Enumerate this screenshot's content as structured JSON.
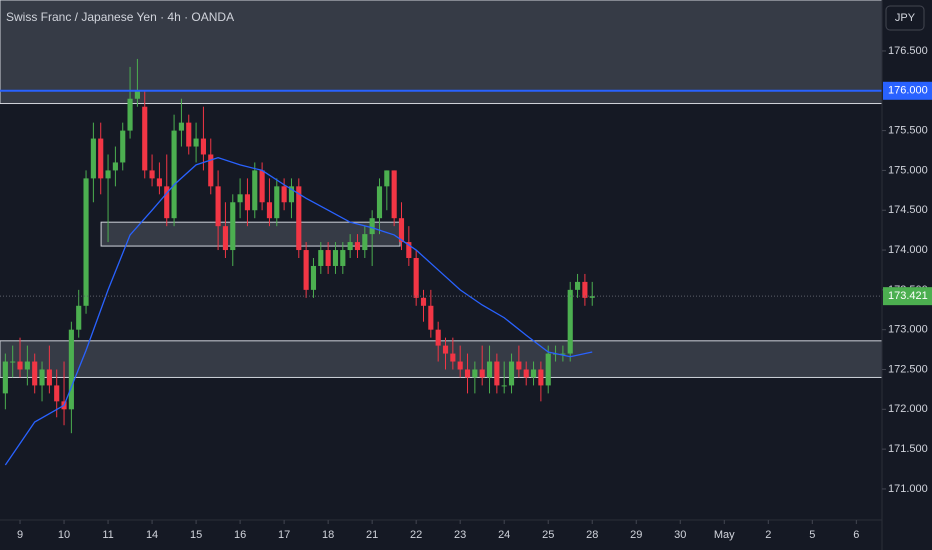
{
  "chart_data": {
    "type": "candlestick",
    "title": "Swiss Franc / Japanese Yen · 4h · OANDA",
    "currency": "JPY",
    "up_color": "#4caf50",
    "down_color": "#f23645",
    "ma_color": "#2962ff",
    "xlim": [
      -2.73,
      117.5
    ],
    "ylim": [
      170.61,
      177.14
    ],
    "xticks": [
      {
        "value": 0,
        "label": "9"
      },
      {
        "value": 6,
        "label": "10"
      },
      {
        "value": 12,
        "label": "11"
      },
      {
        "value": 18,
        "label": "14"
      },
      {
        "value": 24,
        "label": "15"
      },
      {
        "value": 30,
        "label": "16"
      },
      {
        "value": 36,
        "label": "17"
      },
      {
        "value": 42,
        "label": "18"
      },
      {
        "value": 48,
        "label": "21"
      },
      {
        "value": 54,
        "label": "22"
      },
      {
        "value": 60,
        "label": "23"
      },
      {
        "value": 66,
        "label": "24"
      },
      {
        "value": 72,
        "label": "25"
      },
      {
        "value": 78,
        "label": "28"
      },
      {
        "value": 84,
        "label": "29"
      },
      {
        "value": 90,
        "label": "30"
      },
      {
        "value": 96,
        "label": "May"
      },
      {
        "value": 102,
        "label": "2"
      },
      {
        "value": 108,
        "label": "5"
      },
      {
        "value": 114,
        "label": "6"
      }
    ],
    "yticks": [
      {
        "value": 171,
        "label": "171.000"
      },
      {
        "value": 171.5,
        "label": "171.500"
      },
      {
        "value": 172,
        "label": "172.000"
      },
      {
        "value": 172.5,
        "label": "172.500"
      },
      {
        "value": 173,
        "label": "173.000"
      },
      {
        "value": 173.5,
        "label": "173.500"
      },
      {
        "value": 174,
        "label": "174.000"
      },
      {
        "value": 174.5,
        "label": "174.500"
      },
      {
        "value": 175,
        "label": "175.000"
      },
      {
        "value": 175.5,
        "label": "175.500"
      },
      {
        "value": 176.5,
        "label": "176.500"
      }
    ],
    "x": [
      -2,
      -1,
      0,
      1,
      2,
      3,
      4,
      5,
      6,
      7,
      8,
      9,
      10,
      11,
      12,
      13,
      14,
      15,
      16,
      17,
      18,
      19,
      20,
      21,
      22,
      23,
      24,
      25,
      26,
      27,
      28,
      29,
      30,
      31,
      32,
      33,
      34,
      35,
      36,
      37,
      38,
      39,
      40,
      41,
      42,
      43,
      44,
      45,
      46,
      47,
      48,
      49,
      50,
      51,
      52,
      53,
      54,
      55,
      56,
      57,
      58,
      59,
      60,
      61,
      62,
      63,
      64,
      65,
      66,
      67,
      68,
      69,
      70,
      71,
      72,
      73,
      74,
      75,
      76,
      77,
      78
    ],
    "ohlc": [
      [
        172.2,
        172.7,
        172.0,
        172.6
      ],
      [
        172.6,
        172.8,
        172.4,
        172.6
      ],
      [
        172.6,
        172.9,
        172.4,
        172.5
      ],
      [
        172.5,
        172.8,
        172.3,
        172.6
      ],
      [
        172.6,
        172.7,
        172.2,
        172.3
      ],
      [
        172.3,
        172.6,
        172.1,
        172.5
      ],
      [
        172.5,
        172.8,
        172.2,
        172.3
      ],
      [
        172.3,
        172.5,
        171.9,
        172.1
      ],
      [
        172.1,
        172.6,
        171.8,
        172.0
      ],
      [
        172.0,
        173.1,
        171.7,
        173.0
      ],
      [
        173.0,
        173.5,
        172.9,
        173.3
      ],
      [
        173.3,
        175.0,
        173.2,
        174.9
      ],
      [
        174.9,
        175.6,
        174.6,
        175.4
      ],
      [
        175.4,
        175.6,
        174.7,
        174.9
      ],
      [
        174.9,
        175.2,
        174.1,
        175.0
      ],
      [
        175.0,
        175.3,
        174.8,
        175.1
      ],
      [
        175.1,
        175.6,
        175.0,
        175.5
      ],
      [
        175.5,
        176.3,
        175.4,
        175.9
      ],
      [
        175.9,
        176.4,
        175.8,
        176.0
      ],
      [
        175.8,
        176.0,
        174.9,
        175.0
      ],
      [
        175.0,
        175.2,
        174.8,
        174.9
      ],
      [
        174.9,
        175.1,
        174.7,
        174.8
      ],
      [
        174.8,
        175.2,
        174.3,
        174.4
      ],
      [
        174.4,
        175.7,
        174.3,
        175.5
      ],
      [
        175.5,
        175.9,
        175.3,
        175.6
      ],
      [
        175.6,
        175.7,
        175.2,
        175.3
      ],
      [
        175.3,
        175.6,
        175.1,
        175.4
      ],
      [
        175.4,
        175.8,
        175.0,
        175.2
      ],
      [
        175.2,
        175.4,
        174.7,
        174.8
      ],
      [
        174.8,
        175.0,
        174.0,
        174.3
      ],
      [
        174.3,
        174.6,
        173.9,
        174.0
      ],
      [
        174.0,
        174.7,
        173.8,
        174.6
      ],
      [
        174.6,
        174.9,
        174.4,
        174.7
      ],
      [
        174.7,
        174.9,
        174.3,
        174.5
      ],
      [
        174.5,
        175.1,
        174.4,
        175.0
      ],
      [
        175.0,
        175.1,
        174.5,
        174.6
      ],
      [
        174.6,
        174.9,
        174.3,
        174.4
      ],
      [
        174.4,
        174.9,
        174.3,
        174.8
      ],
      [
        174.8,
        174.9,
        174.5,
        174.6
      ],
      [
        174.6,
        174.9,
        174.4,
        174.8
      ],
      [
        174.8,
        174.9,
        173.9,
        174.0
      ],
      [
        174.0,
        174.1,
        173.4,
        173.5
      ],
      [
        173.5,
        173.9,
        173.4,
        173.8
      ],
      [
        173.8,
        174.1,
        173.7,
        174.0
      ],
      [
        174.0,
        174.1,
        173.7,
        173.8
      ],
      [
        173.8,
        174.1,
        173.7,
        174.0
      ],
      [
        173.8,
        174.1,
        173.7,
        174.0
      ],
      [
        174.0,
        174.2,
        173.9,
        174.1
      ],
      [
        174.1,
        174.2,
        173.9,
        174.0
      ],
      [
        174.0,
        174.3,
        173.9,
        174.2
      ],
      [
        174.2,
        174.5,
        173.8,
        174.4
      ],
      [
        174.4,
        174.9,
        174.2,
        174.8
      ],
      [
        174.8,
        175.0,
        174.5,
        175.0
      ],
      [
        175.0,
        175.0,
        174.3,
        174.4
      ],
      [
        174.4,
        174.6,
        174.0,
        174.1
      ],
      [
        174.1,
        174.3,
        173.8,
        173.9
      ],
      [
        173.9,
        174.0,
        173.3,
        173.4
      ],
      [
        173.4,
        173.5,
        173.1,
        173.3
      ],
      [
        173.3,
        173.5,
        172.9,
        173.0
      ],
      [
        173.0,
        173.1,
        172.6,
        172.8
      ],
      [
        172.8,
        172.9,
        172.5,
        172.7
      ],
      [
        172.7,
        172.9,
        172.5,
        172.6
      ],
      [
        172.6,
        172.8,
        172.4,
        172.5
      ],
      [
        172.5,
        172.7,
        172.2,
        172.4
      ],
      [
        172.4,
        172.6,
        172.2,
        172.5
      ],
      [
        172.5,
        172.8,
        172.3,
        172.4
      ],
      [
        172.4,
        172.8,
        172.2,
        172.6
      ],
      [
        172.6,
        172.7,
        172.2,
        172.3
      ],
      [
        172.3,
        172.6,
        172.2,
        172.3
      ],
      [
        172.3,
        172.7,
        172.2,
        172.6
      ],
      [
        172.6,
        172.8,
        172.4,
        172.5
      ],
      [
        172.5,
        172.6,
        172.3,
        172.4
      ],
      [
        172.4,
        172.6,
        172.3,
        172.5
      ],
      [
        172.5,
        172.6,
        172.1,
        172.3
      ],
      [
        172.3,
        172.8,
        172.2,
        172.7
      ],
      [
        172.7,
        172.8,
        172.6,
        172.7
      ],
      [
        172.7,
        172.8,
        172.6,
        172.7
      ],
      [
        172.7,
        173.6,
        172.6,
        173.5
      ],
      [
        173.5,
        173.7,
        173.4,
        173.6
      ],
      [
        173.6,
        173.7,
        173.3,
        173.4
      ],
      [
        173.4,
        173.6,
        173.3,
        173.421
      ]
    ],
    "ma": {
      "x": [
        -2,
        2,
        6,
        9,
        12,
        15,
        18,
        21,
        24,
        27,
        30,
        33,
        36,
        39,
        42,
        45,
        48,
        51,
        54,
        57,
        60,
        63,
        66,
        69,
        72,
        75,
        78
      ],
      "values": [
        171.3,
        171.84,
        172.05,
        172.74,
        173.5,
        174.19,
        174.5,
        174.82,
        175.07,
        175.16,
        175.07,
        175.0,
        174.82,
        174.65,
        174.5,
        174.35,
        174.28,
        174.19,
        174.0,
        173.75,
        173.5,
        173.31,
        173.15,
        172.93,
        172.72,
        172.66,
        172.72
      ]
    },
    "zones": [
      {
        "low": 175.84,
        "high": 177.14
      },
      {
        "low": 174.05,
        "high": 174.35,
        "from": 11.05,
        "to": 51.8
      },
      {
        "low": 172.4,
        "high": 172.86
      }
    ],
    "levels": [
      {
        "value": 176,
        "label": "176.000",
        "color": "#2962ff"
      }
    ],
    "last_price": 173.421,
    "last_color": "#4caf50"
  }
}
